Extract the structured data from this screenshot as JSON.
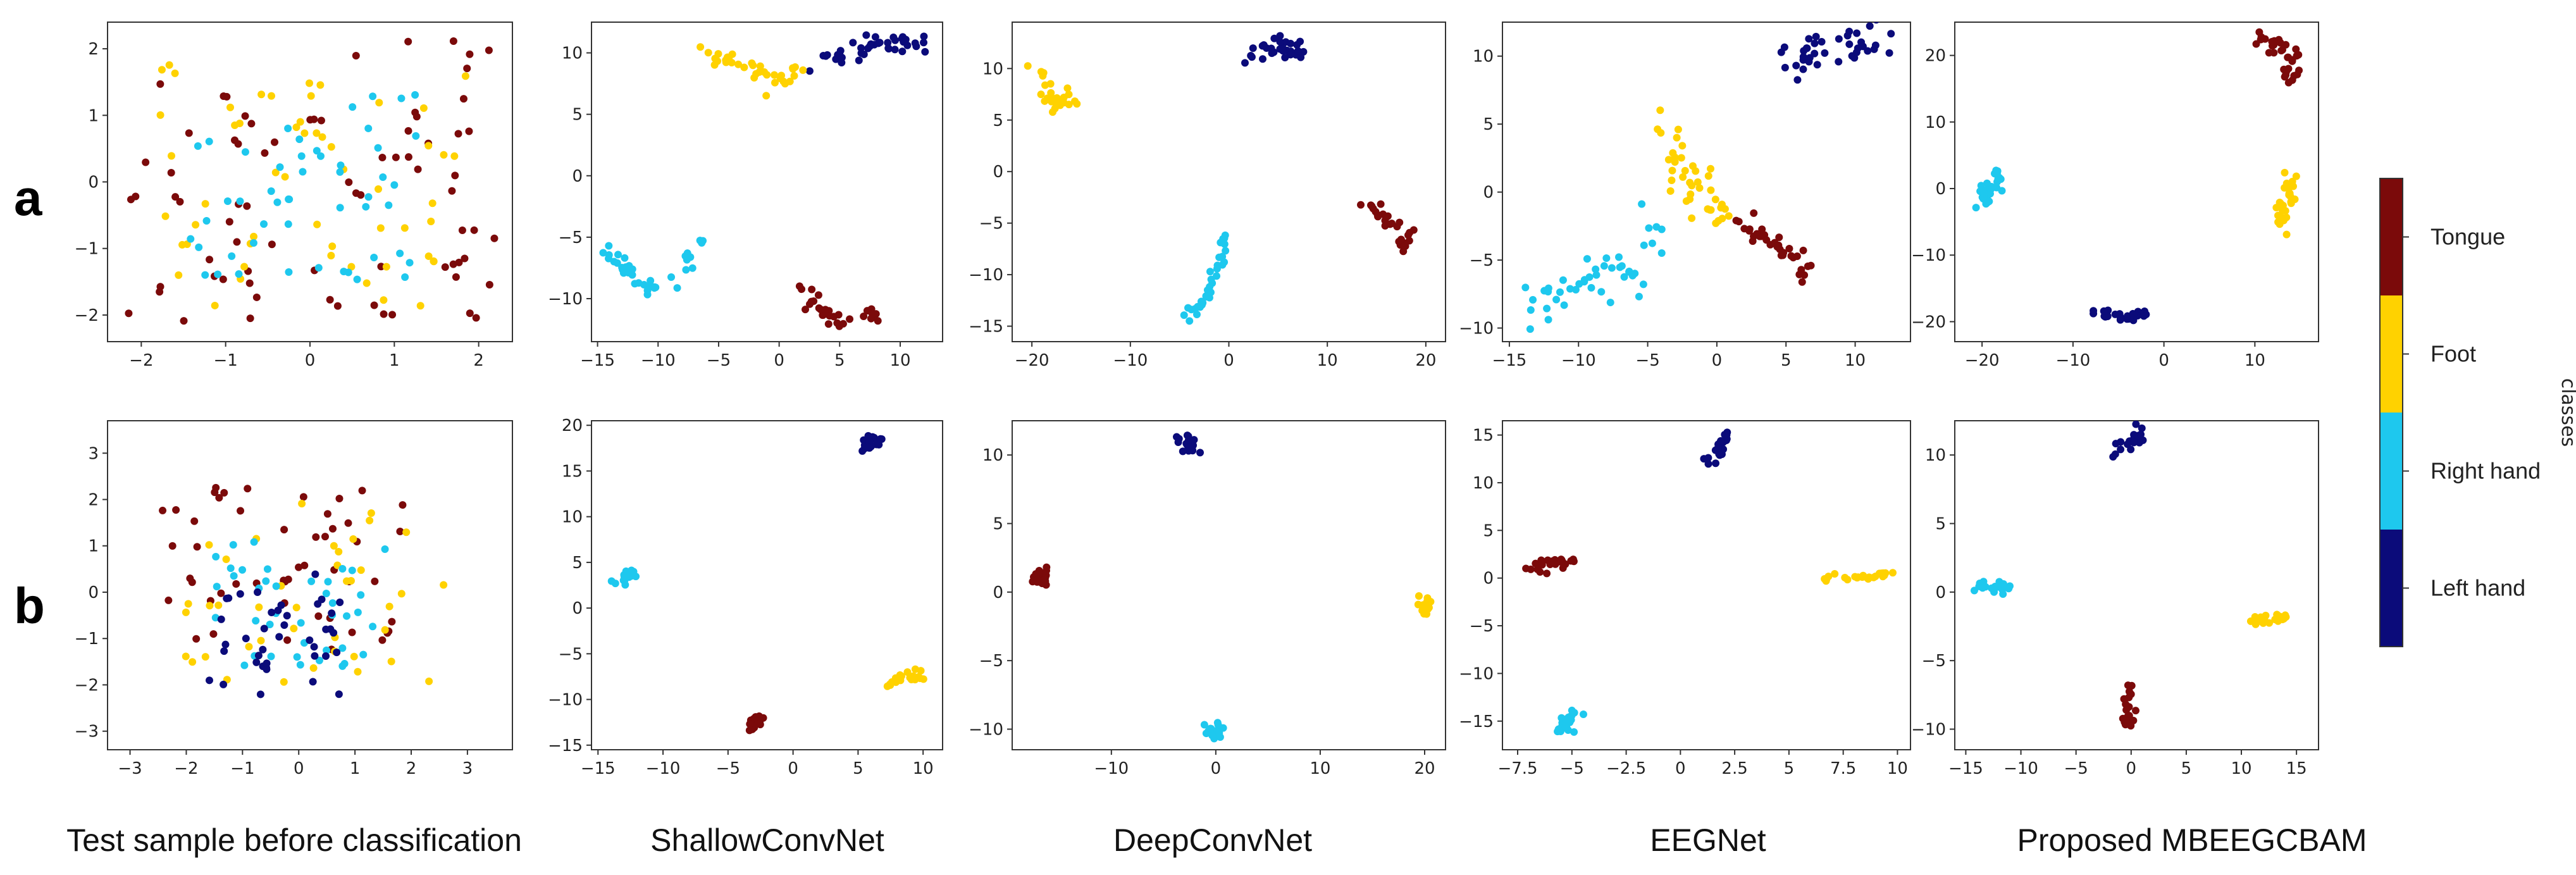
{
  "figure": {
    "row_labels": [
      "a",
      "b"
    ],
    "captions": [
      "Test sample before classification",
      "ShallowConvNet",
      "DeepConvNet",
      "EEGNet",
      "Proposed MBEEGCBAM"
    ]
  },
  "colorbar": {
    "title": "classes",
    "classes": [
      {
        "name": "Tongue",
        "color": "#7b0a0a"
      },
      {
        "name": "Foot",
        "color": "#ffd200"
      },
      {
        "name": "Right hand",
        "color": "#1ec8ee"
      },
      {
        "name": "Left hand",
        "color": "#0b0b7a"
      }
    ]
  },
  "chart_data": [
    {
      "type": "scatter",
      "row": "a",
      "col": 0,
      "title": "Test sample before classification",
      "xlim": [
        -2.4,
        2.4
      ],
      "ylim": [
        -2.4,
        2.4
      ],
      "xticks": [
        -2,
        -1,
        0,
        1,
        2
      ],
      "yticks": [
        -2,
        -1,
        0,
        1,
        2
      ],
      "clusters": [
        {
          "class": "Tongue",
          "mode": "scatter",
          "cx": 0,
          "cy": 0,
          "sx": 2.0,
          "sy": 2.0,
          "n": 75
        },
        {
          "class": "Foot",
          "mode": "scatter",
          "cx": 0,
          "cy": 0,
          "sx": 1.7,
          "sy": 1.7,
          "n": 55
        },
        {
          "class": "Right hand",
          "mode": "scatter",
          "cx": 0,
          "cy": -0.1,
          "sx": 1.3,
          "sy": 1.3,
          "n": 50
        }
      ]
    },
    {
      "type": "scatter",
      "row": "a",
      "col": 1,
      "title": "ShallowConvNet",
      "xlim": [
        -15.5,
        13.5
      ],
      "ylim": [
        -13.5,
        12.5
      ],
      "xticks": [
        -15,
        -10,
        -5,
        0,
        5,
        10
      ],
      "yticks": [
        -10,
        -5,
        0,
        5,
        10
      ],
      "clusters": [
        {
          "class": "Left hand",
          "mode": "path",
          "path": [
            [
              3,
              9.5
            ],
            [
              6,
              10
            ],
            [
              8,
              11
            ],
            [
              10,
              11
            ],
            [
              12,
              10.5
            ]
          ],
          "spread": 0.5,
          "n": 40
        },
        {
          "class": "Foot",
          "mode": "path",
          "path": [
            [
              -6,
              10
            ],
            [
              -4,
              9.5
            ],
            [
              -2,
              8.5
            ],
            [
              0,
              7.5
            ],
            [
              2,
              9
            ]
          ],
          "spread": 0.4,
          "n": 35
        },
        {
          "class": "Right hand",
          "mode": "path",
          "path": [
            [
              -14,
              -6
            ],
            [
              -13,
              -7.5
            ],
            [
              -11,
              -9
            ],
            [
              -9,
              -9
            ],
            [
              -7,
              -7
            ],
            [
              -6.5,
              -5
            ]
          ],
          "spread": 0.4,
          "n": 40
        },
        {
          "class": "Tongue",
          "mode": "path",
          "path": [
            [
              2,
              -9
            ],
            [
              3,
              -11
            ],
            [
              5,
              -12
            ],
            [
              8,
              -11.5
            ]
          ],
          "spread": 0.4,
          "n": 30
        }
      ]
    },
    {
      "type": "scatter",
      "row": "a",
      "col": 2,
      "title": "DeepConvNet",
      "xlim": [
        -22,
        22
      ],
      "ylim": [
        -16.5,
        14.5
      ],
      "xticks": [
        -20,
        -10,
        0,
        10,
        20
      ],
      "yticks": [
        -15,
        -10,
        -5,
        0,
        5,
        10
      ],
      "clusters": [
        {
          "class": "Left hand",
          "mode": "path",
          "path": [
            [
              2,
              11
            ],
            [
              4,
              12
            ],
            [
              6,
              12
            ],
            [
              7,
              11.5
            ]
          ],
          "spread": 0.5,
          "n": 30
        },
        {
          "class": "Foot",
          "mode": "path",
          "path": [
            [
              -20,
              10
            ],
            [
              -18,
              8
            ],
            [
              -18,
              6
            ],
            [
              -16,
              7
            ]
          ],
          "spread": 0.5,
          "n": 30
        },
        {
          "class": "Right hand",
          "mode": "path",
          "path": [
            [
              -4,
              -14
            ],
            [
              -2,
              -12
            ],
            [
              -1,
              -9
            ],
            [
              0,
              -6
            ]
          ],
          "spread": 0.4,
          "n": 35
        },
        {
          "class": "Tongue",
          "mode": "path",
          "path": [
            [
              14,
              -3
            ],
            [
              16,
              -4.5
            ],
            [
              18,
              -6
            ],
            [
              18,
              -7.5
            ]
          ],
          "spread": 0.4,
          "n": 30
        }
      ]
    },
    {
      "type": "scatter",
      "row": "a",
      "col": 3,
      "title": "EEGNet",
      "xlim": [
        -15.5,
        14
      ],
      "ylim": [
        -11,
        12.5
      ],
      "xticks": [
        -15,
        -10,
        -5,
        0,
        5,
        10
      ],
      "yticks": [
        -10,
        -5,
        0,
        5,
        10
      ],
      "clusters": [
        {
          "class": "Left hand",
          "mode": "path",
          "path": [
            [
              5,
              9.5
            ],
            [
              7,
              10
            ],
            [
              10,
              11
            ],
            [
              12,
              11.5
            ]
          ],
          "spread": 0.7,
          "n": 40
        },
        {
          "class": "Foot",
          "mode": "path",
          "path": [
            [
              -4,
              5
            ],
            [
              -3,
              3
            ],
            [
              -2,
              1
            ],
            [
              -1,
              -0.5
            ],
            [
              1,
              -2
            ]
          ],
          "spread": 0.6,
          "n": 40
        },
        {
          "class": "Tongue",
          "mode": "path",
          "path": [
            [
              1,
              -1.5
            ],
            [
              3,
              -3
            ],
            [
              5,
              -4.5
            ],
            [
              7,
              -6
            ]
          ],
          "spread": 0.4,
          "n": 35
        },
        {
          "class": "Right hand",
          "mode": "path",
          "path": [
            [
              -14,
              -9
            ],
            [
              -12,
              -8
            ],
            [
              -10,
              -7
            ],
            [
              -8,
              -6
            ],
            [
              -6,
              -6.5
            ],
            [
              -4,
              -2
            ]
          ],
          "spread": 0.8,
          "n": 45
        }
      ]
    },
    {
      "type": "scatter",
      "row": "a",
      "col": 4,
      "title": "Proposed MBEEGCBAM",
      "xlim": [
        -23,
        17
      ],
      "ylim": [
        -23,
        25
      ],
      "xticks": [
        -20,
        -10,
        0,
        10
      ],
      "yticks": [
        -20,
        -10,
        0,
        10,
        20
      ],
      "clusters": [
        {
          "class": "Tongue",
          "mode": "path",
          "path": [
            [
              10,
              22
            ],
            [
              12,
              22
            ],
            [
              14,
              20
            ],
            [
              14,
              17
            ]
          ],
          "spread": 0.6,
          "n": 35
        },
        {
          "class": "Right hand",
          "mode": "path",
          "path": [
            [
              -20,
              -2
            ],
            [
              -19,
              0
            ],
            [
              -18,
              3
            ]
          ],
          "spread": 0.6,
          "n": 30
        },
        {
          "class": "Foot",
          "mode": "path",
          "path": [
            [
              13,
              -6
            ],
            [
              13,
              -3
            ],
            [
              14,
              -1
            ],
            [
              14,
              2
            ]
          ],
          "spread": 0.5,
          "n": 30
        },
        {
          "class": "Left hand",
          "mode": "path",
          "path": [
            [
              -8,
              -18
            ],
            [
              -6,
              -19
            ],
            [
              -4,
              -19.5
            ],
            [
              -2,
              -19
            ]
          ],
          "spread": 0.4,
          "n": 30
        }
      ]
    },
    {
      "type": "scatter",
      "row": "b",
      "col": 0,
      "title": "Test sample before classification",
      "xlim": [
        -3.4,
        3.8
      ],
      "ylim": [
        -3.4,
        3.7
      ],
      "xticks": [
        -3,
        -2,
        -1,
        0,
        1,
        2,
        3
      ],
      "yticks": [
        -3,
        -2,
        -1,
        0,
        1,
        2,
        3
      ],
      "clusters": [
        {
          "class": "Tongue",
          "mode": "scatter",
          "cx": -0.3,
          "cy": 0.5,
          "sx": 2.0,
          "sy": 1.6,
          "n": 50
        },
        {
          "class": "Foot",
          "mode": "scatter",
          "cx": 0.3,
          "cy": 0,
          "sx": 2.1,
          "sy": 1.8,
          "n": 40
        },
        {
          "class": "Right hand",
          "mode": "scatter",
          "cx": 0,
          "cy": -0.3,
          "sx": 1.4,
          "sy": 1.3,
          "n": 40
        },
        {
          "class": "Left hand",
          "mode": "scatter",
          "cx": -0.4,
          "cy": -0.9,
          "sx": 1.2,
          "sy": 1.2,
          "n": 40
        }
      ]
    },
    {
      "type": "scatter",
      "row": "b",
      "col": 1,
      "title": "ShallowConvNet",
      "xlim": [
        -15.5,
        11.5
      ],
      "ylim": [
        -15.5,
        20.5
      ],
      "xticks": [
        -15,
        -10,
        -5,
        0,
        5,
        10
      ],
      "yticks": [
        -15,
        -10,
        -5,
        0,
        5,
        10,
        15,
        20
      ],
      "clusters": [
        {
          "class": "Left hand",
          "mode": "path",
          "path": [
            [
              5.5,
              17.5
            ],
            [
              6,
              18.5
            ],
            [
              7,
              18.5
            ]
          ],
          "spread": 0.3,
          "n": 20
        },
        {
          "class": "Right hand",
          "mode": "path",
          "path": [
            [
              -14,
              3
            ],
            [
              -12.5,
              3.5
            ],
            [
              -12.5,
              4
            ]
          ],
          "spread": 0.3,
          "n": 15
        },
        {
          "class": "Tongue",
          "mode": "path",
          "path": [
            [
              -3.5,
              -13.5
            ],
            [
              -3,
              -12.5
            ],
            [
              -2.5,
              -12
            ]
          ],
          "spread": 0.3,
          "n": 15
        },
        {
          "class": "Foot",
          "mode": "path",
          "path": [
            [
              7,
              -9
            ],
            [
              8,
              -8
            ],
            [
              9,
              -7.5
            ],
            [
              10,
              -7
            ]
          ],
          "spread": 0.3,
          "n": 20
        }
      ]
    },
    {
      "type": "scatter",
      "row": "b",
      "col": 2,
      "title": "DeepConvNet",
      "xlim": [
        -19.5,
        22
      ],
      "ylim": [
        -11.5,
        12.5
      ],
      "xticks": [
        -10,
        0,
        10,
        20
      ],
      "yticks": [
        -10,
        -5,
        0,
        5,
        10
      ],
      "clusters": [
        {
          "class": "Left hand",
          "mode": "path",
          "path": [
            [
              -3,
              11
            ],
            [
              -2,
              10.5
            ]
          ],
          "spread": 0.3,
          "n": 20
        },
        {
          "class": "Tongue",
          "mode": "path",
          "path": [
            [
              -17,
              1
            ],
            [
              -16.5,
              1.5
            ],
            [
              -16.5,
              0.5
            ]
          ],
          "spread": 0.3,
          "n": 20
        },
        {
          "class": "Foot",
          "mode": "path",
          "path": [
            [
              19.5,
              -0.5
            ],
            [
              20.5,
              -1.5
            ]
          ],
          "spread": 0.3,
          "n": 15
        },
        {
          "class": "Right hand",
          "mode": "path",
          "path": [
            [
              -1,
              -10
            ],
            [
              0,
              -10.5
            ],
            [
              0.5,
              -10
            ]
          ],
          "spread": 0.3,
          "n": 15
        }
      ]
    },
    {
      "type": "scatter",
      "row": "b",
      "col": 3,
      "title": "EEGNet",
      "xlim": [
        -8.2,
        10.6
      ],
      "ylim": [
        -18,
        16.5
      ],
      "xticks": [
        -7.5,
        -5.0,
        -2.5,
        0.0,
        2.5,
        5.0,
        7.5,
        10.0
      ],
      "yticks": [
        -15,
        -10,
        -5,
        0,
        5,
        10,
        15
      ],
      "clusters": [
        {
          "class": "Left hand",
          "mode": "path",
          "path": [
            [
              2,
              15
            ],
            [
              2,
              14
            ],
            [
              1.8,
              13
            ],
            [
              1.5,
              12
            ]
          ],
          "spread": 0.2,
          "n": 25
        },
        {
          "class": "Tongue",
          "mode": "path",
          "path": [
            [
              -7,
              1
            ],
            [
              -6,
              1.5
            ],
            [
              -5,
              2
            ]
          ],
          "spread": 0.3,
          "n": 25
        },
        {
          "class": "Foot",
          "mode": "path",
          "path": [
            [
              6.5,
              0
            ],
            [
              8,
              0
            ],
            [
              9,
              0.3
            ],
            [
              9.8,
              0.6
            ]
          ],
          "spread": 0.2,
          "n": 25
        },
        {
          "class": "Right hand",
          "mode": "path",
          "path": [
            [
              -5.5,
              -16
            ],
            [
              -5.2,
              -15
            ],
            [
              -5,
              -14
            ]
          ],
          "spread": 0.2,
          "n": 20
        }
      ]
    },
    {
      "type": "scatter",
      "row": "b",
      "col": 4,
      "title": "Proposed MBEEGCBAM",
      "xlim": [
        -16,
        17
      ],
      "ylim": [
        -11.5,
        12.5
      ],
      "xticks": [
        -15,
        -10,
        -5,
        0,
        5,
        10,
        15
      ],
      "yticks": [
        -10,
        -5,
        0,
        5,
        10
      ],
      "clusters": [
        {
          "class": "Left hand",
          "mode": "path",
          "path": [
            [
              -2,
              10
            ],
            [
              0,
              11
            ],
            [
              1,
              11.5
            ]
          ],
          "spread": 0.3,
          "n": 20
        },
        {
          "class": "Right hand",
          "mode": "path",
          "path": [
            [
              -14,
              0.5
            ],
            [
              -12,
              0.3
            ],
            [
              -11,
              0.5
            ]
          ],
          "spread": 0.2,
          "n": 20
        },
        {
          "class": "Foot",
          "mode": "path",
          "path": [
            [
              11,
              -2.2
            ],
            [
              13,
              -2
            ],
            [
              15,
              -1.8
            ]
          ],
          "spread": 0.2,
          "n": 20
        },
        {
          "class": "Tongue",
          "mode": "path",
          "path": [
            [
              0,
              -7
            ],
            [
              -0.5,
              -9
            ],
            [
              0,
              -10
            ]
          ],
          "spread": 0.3,
          "n": 20
        }
      ]
    }
  ]
}
